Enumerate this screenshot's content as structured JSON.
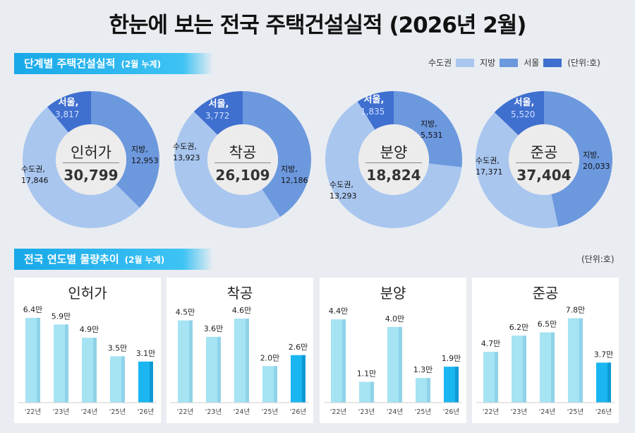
{
  "title": "한눈에 보는 전국 주택건설실적 (2026년 2월)",
  "section1": {
    "label": "단계별 주택건설실적",
    "sub": "(2월 누계)"
  },
  "section2": {
    "label": "전국 연도별 물량추이",
    "sub": "(2월 누계)"
  },
  "legend": {
    "items": [
      {
        "name": "수도권",
        "color": "#a9c6ef"
      },
      {
        "name": "지방",
        "color": "#6c98de"
      },
      {
        "name": "서울",
        "color": "#3f6fcf"
      }
    ],
    "unit": "(단위:호)"
  },
  "unit2": "(단위:호)",
  "donuts": [
    {
      "title": "인허가",
      "total": "30,799",
      "segments": {
        "seoul": {
          "name": "서울,",
          "value": "3,817",
          "num": 3817
        },
        "jibang": {
          "name": "지방,",
          "value": "12,953",
          "num": 12953
        },
        "sudo": {
          "name": "수도권,",
          "value": "17,846",
          "num": 17846
        }
      }
    },
    {
      "title": "착공",
      "total": "26,109",
      "segments": {
        "seoul": {
          "name": "서울,",
          "value": "3,772",
          "num": 3772
        },
        "jibang": {
          "name": "지방,",
          "value": "12,186",
          "num": 12186
        },
        "sudo": {
          "name": "수도권,",
          "value": "13,923",
          "num": 13923
        }
      }
    },
    {
      "title": "분양",
      "total": "18,824",
      "segments": {
        "seoul": {
          "name": "서울,",
          "value": "1,835",
          "num": 1835
        },
        "jibang": {
          "name": "지방,",
          "value": "5,531",
          "num": 5531
        },
        "sudo": {
          "name": "수도권,",
          "value": "13,293",
          "num": 13293
        }
      }
    },
    {
      "title": "준공",
      "total": "37,404",
      "segments": {
        "seoul": {
          "name": "서울,",
          "value": "5,520",
          "num": 5520
        },
        "jibang": {
          "name": "지방,",
          "value": "20,033",
          "num": 20033
        },
        "sudo": {
          "name": "수도권,",
          "value": "17,371",
          "num": 17371
        }
      }
    }
  ],
  "chart_data": [
    {
      "type": "bar",
      "title": "인허가",
      "categories": [
        "'22년",
        "'23년",
        "'24년",
        "'25년",
        "'26년"
      ],
      "values": [
        6.4,
        5.9,
        4.9,
        3.5,
        3.1
      ],
      "labels": [
        "6.4만",
        "5.9만",
        "4.9만",
        "3.5만",
        "3.1만"
      ],
      "ylim": [
        0,
        8
      ],
      "colors": {
        "past": "#a6e3f3",
        "current": "#1ab6f2"
      }
    },
    {
      "type": "bar",
      "title": "착공",
      "categories": [
        "'22년",
        "'23년",
        "'24년",
        "'25년",
        "'26년"
      ],
      "values": [
        4.5,
        3.6,
        4.6,
        2.0,
        2.6
      ],
      "labels": [
        "4.5만",
        "3.6만",
        "4.6만",
        "2.0만",
        "2.6만"
      ],
      "ylim": [
        0,
        5.8
      ],
      "colors": {
        "past": "#a6e3f3",
        "current": "#1ab6f2"
      }
    },
    {
      "type": "bar",
      "title": "분양",
      "categories": [
        "'22년",
        "'23년",
        "'24년",
        "'25년",
        "'26년"
      ],
      "values": [
        4.4,
        1.1,
        4.0,
        1.3,
        1.9
      ],
      "labels": [
        "4.4만",
        "1.1만",
        "4.0만",
        "1.3만",
        "1.9만"
      ],
      "ylim": [
        0,
        5.6
      ],
      "colors": {
        "past": "#a6e3f3",
        "current": "#1ab6f2"
      }
    },
    {
      "type": "bar",
      "title": "준공",
      "categories": [
        "'22년",
        "'23년",
        "'24년",
        "'25년",
        "'26년"
      ],
      "values": [
        4.7,
        6.2,
        6.5,
        7.8,
        3.7
      ],
      "labels": [
        "4.7만",
        "6.2만",
        "6.5만",
        "7.8만",
        "3.7만"
      ],
      "ylim": [
        0,
        9.8
      ],
      "colors": {
        "past": "#a6e3f3",
        "current": "#1ab6f2"
      }
    }
  ]
}
